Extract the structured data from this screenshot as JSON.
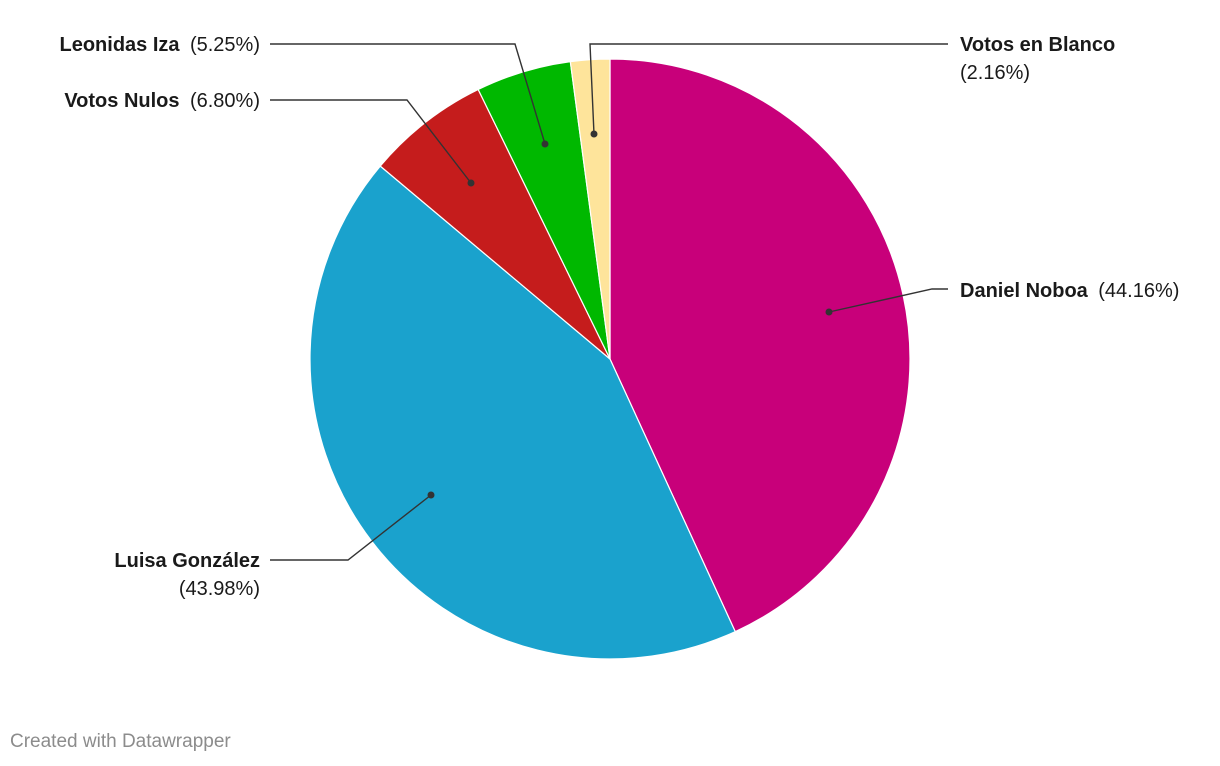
{
  "chart_data": {
    "type": "pie",
    "slices": [
      {
        "name": "Daniel Noboa",
        "value": 44.16,
        "value_label": "(44.16%)",
        "color": "#c8007a"
      },
      {
        "name": "Luisa González",
        "value": 43.98,
        "value_label": "(43.98%)",
        "color": "#1aa2cd"
      },
      {
        "name": "Votos Nulos",
        "value": 6.8,
        "value_label": "(6.80%)",
        "color": "#c51c1c"
      },
      {
        "name": "Leonidas Iza",
        "value": 5.25,
        "value_label": "(5.25%)",
        "color": "#00b800"
      },
      {
        "name": "Votos en Blanco",
        "value": 2.16,
        "value_label": "(2.16%)",
        "color": "#fee49b"
      }
    ],
    "start_angle": "12 o'clock",
    "direction": "clockwise",
    "legend": "none (direct labels)"
  },
  "footer": {
    "credit": "Created with Datawrapper"
  }
}
